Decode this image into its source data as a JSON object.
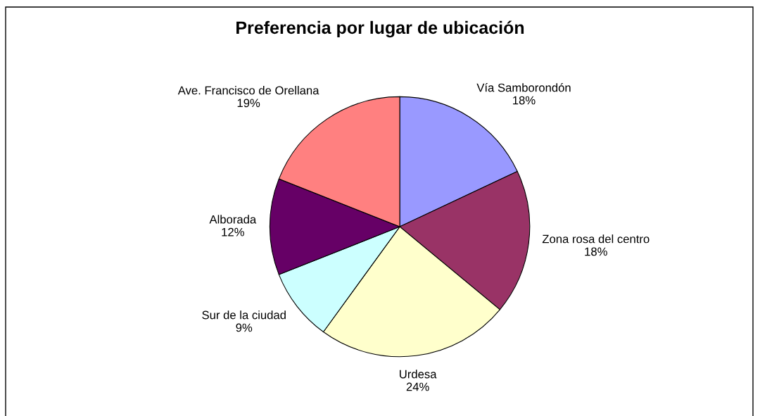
{
  "chart_data": {
    "type": "pie",
    "title": "Preferencia por lugar de ubicación",
    "categories": [
      "Vía Samborondón",
      "Zona rosa del centro",
      "Urdesa",
      "Sur de la ciudad",
      "Alborada",
      "Ave. Francisco de Orellana"
    ],
    "values": [
      18,
      18,
      24,
      9,
      12,
      19
    ],
    "value_labels": [
      "18%",
      "18%",
      "24%",
      "9%",
      "12%",
      "19%"
    ],
    "colors": [
      "#9999ff",
      "#993366",
      "#ffffcc",
      "#ccffff",
      "#660066",
      "#ff8080"
    ]
  }
}
